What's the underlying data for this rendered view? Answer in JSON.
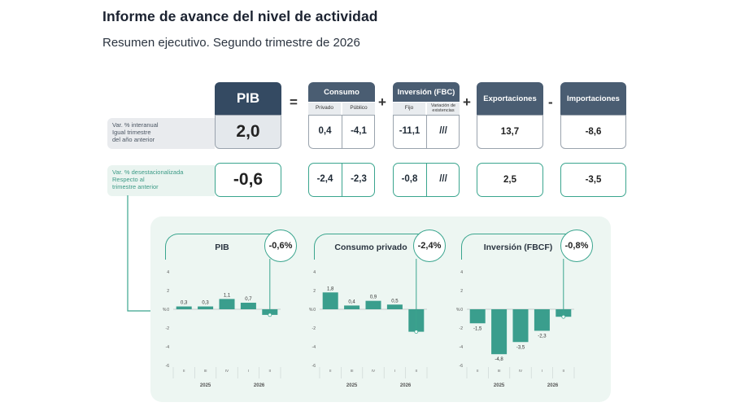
{
  "title": "Informe de avance del nivel de actividad",
  "subtitle": "Resumen ejecutivo. Segundo trimestre de 2026",
  "table": {
    "pib_label": "PIB",
    "consumo_label": "Consumo",
    "privado_label": "Privado",
    "publico_label": "Público",
    "inversion_label": "Inversión (FBC)",
    "fijo_label": "Fijo",
    "variacion_label": "Variación de existencias",
    "exportaciones_label": "Exportaciones",
    "importaciones_label": "Importaciones",
    "op_equals": "=",
    "op_plus1": "+",
    "op_plus2": "+",
    "op_minus": "-",
    "row1": {
      "label1": "Var. % interanual",
      "label2": "Igual trimestre",
      "label3": "del año anterior",
      "pib": "2,0",
      "privado": "0,4",
      "publico": "-4,1",
      "fijo": "-11,1",
      "variacion": "///",
      "exportaciones": "13,7",
      "importaciones": "-8,6"
    },
    "row2": {
      "label1": "Var. % desestacionalizada",
      "label2": "Respecto al",
      "label3": "trimestre anterior",
      "pib": "-0,6",
      "privado": "-2,4",
      "publico": "-2,3",
      "fijo": "-0,8",
      "variacion": "///",
      "exportaciones": "2,5",
      "importaciones": "-3,5"
    }
  },
  "chart_data": [
    {
      "type": "bar",
      "title": "PIB",
      "badge": "-0,6%",
      "categories": [
        "II",
        "III",
        "IV",
        "I",
        "II"
      ],
      "years": [
        {
          "label": "2025",
          "span": [
            0,
            2
          ]
        },
        {
          "label": "2026",
          "span": [
            3,
            4
          ]
        }
      ],
      "values": [
        0.3,
        0.3,
        1.1,
        0.7,
        -0.6
      ],
      "labels": [
        "0,3",
        "0,3",
        "1,1",
        "0,7",
        ""
      ],
      "ylim": [
        -6,
        4
      ],
      "yticks": [
        "4",
        "2",
        "0",
        "-2",
        "-4",
        "-6"
      ],
      "ytick_values": [
        4,
        2,
        0,
        -2,
        -4,
        -6
      ],
      "ylabel": "%",
      "color": "#3a9e8d"
    },
    {
      "type": "bar",
      "title": "Consumo privado",
      "badge": "-2,4%",
      "categories": [
        "II",
        "III",
        "IV",
        "I",
        "II"
      ],
      "years": [
        {
          "label": "2025",
          "span": [
            0,
            2
          ]
        },
        {
          "label": "2026",
          "span": [
            3,
            4
          ]
        }
      ],
      "values": [
        1.8,
        0.4,
        0.9,
        0.5,
        -2.4
      ],
      "labels": [
        "1,8",
        "0,4",
        "0,9",
        "0,5",
        ""
      ],
      "ylim": [
        -6,
        4
      ],
      "yticks": [
        "4",
        "2",
        "0",
        "-2",
        "-4",
        "-6"
      ],
      "ytick_values": [
        4,
        2,
        0,
        -2,
        -4,
        -6
      ],
      "ylabel": "%",
      "color": "#3a9e8d"
    },
    {
      "type": "bar",
      "title": "Inversión (FBCF)",
      "badge": "-0,8%",
      "categories": [
        "II",
        "III",
        "IV",
        "I",
        "II"
      ],
      "years": [
        {
          "label": "2025",
          "span": [
            0,
            2
          ]
        },
        {
          "label": "2026",
          "span": [
            3,
            4
          ]
        }
      ],
      "values": [
        -1.5,
        -4.8,
        -3.5,
        -2.3,
        -0.8
      ],
      "labels": [
        "-1,5",
        "-4,8",
        "-3,5",
        "-2,3",
        ""
      ],
      "ylim": [
        -6,
        4
      ],
      "yticks": [
        "4",
        "2",
        "0",
        "-2",
        "-4",
        "-6"
      ],
      "ytick_values": [
        4,
        2,
        0,
        -2,
        -4,
        -6
      ],
      "ylabel": "%",
      "color": "#3a9e8d"
    }
  ]
}
